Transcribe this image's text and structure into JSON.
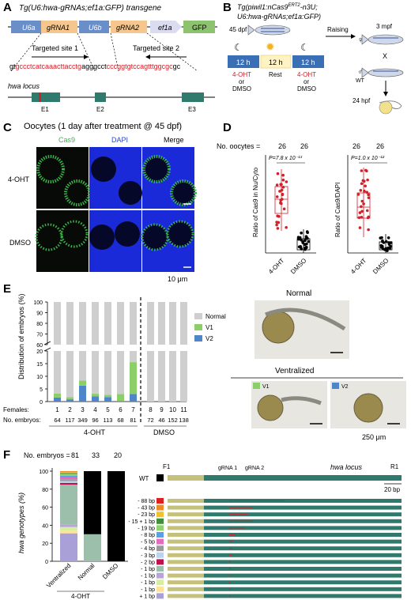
{
  "panels": {
    "A": {
      "letter": "A",
      "title": "Tg(U6:hwa-gRNAs;ef1a:GFP) transgene",
      "boxes": [
        "U6a",
        "gRNA1",
        "U6b",
        "gRNA2",
        "ef1a",
        "GFP"
      ],
      "target1": "Targeted site 1",
      "target2": "Targeted site 2",
      "seq_start": "gt",
      "seq_red1": "gccctcatcaaacttacctg",
      "seq_mid": "agggcct",
      "seq_red2": "cccggtgtccagtttggcgc",
      "seq_end": "gc",
      "locus": "hwa locus",
      "exons": [
        "E1",
        "E2",
        "E3"
      ]
    },
    "B": {
      "letter": "B",
      "title_pre": "Tg(piwil1:nCas9",
      "title_sup": "ERT2",
      "title_post": "-n3U;",
      "title_line2": "U6:hwa-gRNAs;ef1a:GFP)",
      "age": "45 dpf",
      "box12h": [
        "12 h",
        "12 h",
        "12 h"
      ],
      "rest": "Rest",
      "treat1": "4-OHT",
      "or": "or",
      "treat2": "DMSO",
      "raising": "Raising",
      "mpf": "3 mpf",
      "female": "♀",
      "male": "♂",
      "wt": "WT",
      "cross": "X",
      "hpf": "24 hpf"
    },
    "C": {
      "letter": "C",
      "title": "Oocytes (1 day after treatment @ 45 dpf)",
      "cols": [
        "Cas9",
        "DAPI",
        "Merge"
      ],
      "rows": [
        "4-OHT",
        "DMSO"
      ],
      "scale": "10 μm"
    },
    "D": {
      "letter": "D",
      "n_label": "No. oocytes =",
      "n_values": [
        "26",
        "26",
        "26",
        "26"
      ],
      "plot1_ylabel": "Ratio of Cas9 in Nu/Cyto",
      "plot1_p": "P=7.8 x 10⁻¹³",
      "plot2_ylabel": "Ratio of Cas9/DAPI",
      "plot2_p": "P=1.0 x 10⁻¹²",
      "xlabels": [
        "4-OHT",
        "DMSO"
      ]
    },
    "E": {
      "letter": "E",
      "ylabel": "Distribution of embryos (%)",
      "yticks_top": [
        "100",
        "90",
        "80",
        "70",
        "60"
      ],
      "yticks_bot": [
        "20",
        "15",
        "10",
        "5",
        "0"
      ],
      "legend": [
        "Normal",
        "V1",
        "V2"
      ],
      "females_label": "Females:",
      "females": [
        "1",
        "2",
        "3",
        "4",
        "5",
        "6",
        "7",
        "8",
        "9",
        "10",
        "11"
      ],
      "embryos_label": "No. embryos:",
      "embryos": [
        "64",
        "117",
        "349",
        "96",
        "113",
        "68",
        "81",
        "72",
        "46",
        "152",
        "138"
      ],
      "group1": "4-OHT",
      "group2": "DMSO",
      "normal_title": "Normal",
      "ventralized_title": "Ventralized",
      "v1": "V1",
      "v2": "V2",
      "scale": "250 μm"
    },
    "F": {
      "letter": "F",
      "n_label": "No. embryos =",
      "n_values": [
        "81",
        "33",
        "20"
      ],
      "ylabel": "hwa genotypes (%)",
      "yticks": [
        "100",
        "80",
        "60",
        "40",
        "20",
        "0"
      ],
      "xlabels": [
        "Ventralized",
        "Normal",
        "DMSO"
      ],
      "group": "4-OHT",
      "wt": "WT",
      "f1": "F1",
      "r1": "R1",
      "g1": "gRNA 1",
      "g2": "gRNA 2",
      "locus": "hwa locus",
      "scale": "20 bp",
      "alleles": [
        "- 88 bp",
        "- 43 bp",
        "- 23 bp",
        "- 15 + 1 bp",
        "- 19 bp",
        "- 8 bp",
        "- 5 bp",
        "- 4 bp",
        "- 3 bp",
        "- 2 bp",
        "- 1 bp",
        "- 1 bp",
        "- 1 bp",
        "- 1 bp",
        "+ 1 bp"
      ],
      "allele_colors": [
        "#e02020",
        "#f08a24",
        "#f2c12e",
        "#3f8f3a",
        "#8ed36b",
        "#5aa0e8",
        "#e46cc0",
        "#9a9a9a",
        "#b9d3f0",
        "#c0104e",
        "#9bbfaa",
        "#b8a4d8",
        "#d7ef9c",
        "#ffe29a",
        "#a9a0d8"
      ]
    }
  },
  "chart_data": [
    {
      "type": "bar",
      "title": "",
      "categories": [
        "1",
        "2",
        "3",
        "4",
        "5",
        "6",
        "7",
        "8",
        "9",
        "10",
        "11"
      ],
      "series": [
        {
          "name": "Normal",
          "values": [
            96.8,
            98.3,
            91.7,
            96.9,
            97.3,
            97.0,
            84.4,
            100,
            100,
            100,
            100
          ]
        },
        {
          "name": "V1",
          "values": [
            1.6,
            0.8,
            2.0,
            1.0,
            0.9,
            2.9,
            12.6,
            0,
            0,
            0,
            0
          ]
        },
        {
          "name": "V2",
          "values": [
            1.6,
            0.9,
            6.3,
            2.1,
            1.8,
            0.1,
            3.0,
            0,
            0,
            0,
            0
          ]
        }
      ],
      "ylabel": "Distribution of embryos (%)",
      "ylim": [
        0,
        100
      ]
    },
    {
      "type": "bar",
      "title": "",
      "categories": [
        "Ventralized",
        "Normal",
        "DMSO"
      ],
      "ylabel": "hwa genotypes (%)",
      "ylim": [
        0,
        100
      ],
      "series_wt": [
        0,
        70,
        100
      ],
      "ventralized_stack": [
        31,
        3,
        4,
        3,
        44,
        2,
        2,
        2,
        2,
        2,
        2,
        1,
        1,
        1
      ],
      "normal_stack": [
        30
      ]
    }
  ]
}
